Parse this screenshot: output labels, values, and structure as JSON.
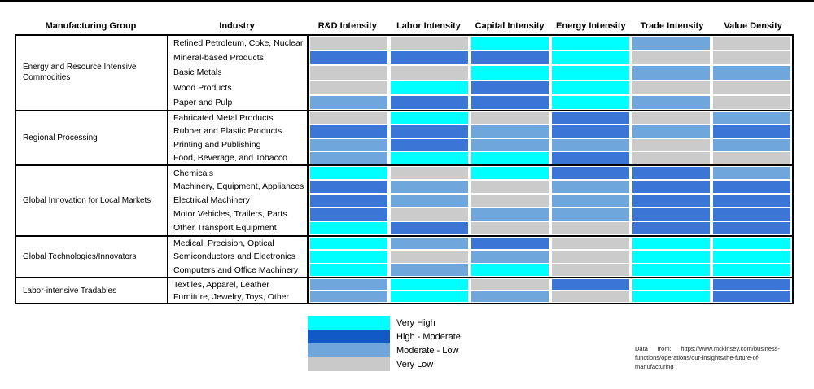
{
  "header": {
    "group_col": "Manufacturing Group",
    "industry_col": "Industry",
    "metric_cols": [
      "R&D Intensity",
      "Labor Intensity",
      "Capital Intensity",
      "Energy Intensity",
      "Trade Intensity",
      "Value Density"
    ]
  },
  "source_note": "Data from: https://www.mckinsey.com/business-functions/operations/our-insights/the-future-of-manufacturing",
  "chart_data": {
    "type": "heatmap",
    "columns": [
      "R&D Intensity",
      "Labor Intensity",
      "Capital Intensity",
      "Energy Intensity",
      "Trade Intensity",
      "Value Density"
    ],
    "level_order": [
      "VH",
      "HM",
      "ML",
      "VL"
    ],
    "levels": {
      "VH": {
        "label": "Very High",
        "legend_color": "#00ffff",
        "cell_color": "#00ffff"
      },
      "HM": {
        "label": "High - Moderate",
        "legend_color": "#1259c8",
        "cell_color": "#3b76d6"
      },
      "ML": {
        "label": "Moderate - Low",
        "legend_color": "#6fa6dc",
        "cell_color": "#6fa6dc"
      },
      "VL": {
        "label": "Very Low",
        "legend_color": "#c9c9c9",
        "cell_color": "#cbcbcb"
      }
    },
    "groups": [
      {
        "name": "Energy and Resource Intensive Commodities",
        "rows": [
          {
            "industry": "Refined Petroleum, Coke, Nuclear",
            "values": [
              "VL",
              "VL",
              "VH",
              "VH",
              "ML",
              "VL"
            ]
          },
          {
            "industry": "Mineral-based Products",
            "values": [
              "HM",
              "HM",
              "HM",
              "VH",
              "VL",
              "VL"
            ]
          },
          {
            "industry": "Basic Metals",
            "values": [
              "VL",
              "VL",
              "VH",
              "VH",
              "ML",
              "ML"
            ]
          },
          {
            "industry": "Wood Products",
            "values": [
              "VL",
              "VH",
              "HM",
              "VH",
              "VL",
              "VL"
            ]
          },
          {
            "industry": "Paper and Pulp",
            "values": [
              "ML",
              "HM",
              "HM",
              "VH",
              "ML",
              "VL"
            ]
          }
        ]
      },
      {
        "name": "Regional Processing",
        "rows": [
          {
            "industry": "Fabricated Metal Products",
            "values": [
              "VL",
              "VH",
              "VL",
              "HM",
              "VL",
              "ML"
            ]
          },
          {
            "industry": "Rubber and Plastic Products",
            "values": [
              "HM",
              "HM",
              "ML",
              "HM",
              "ML",
              "HM"
            ]
          },
          {
            "industry": "Printing and Publishing",
            "values": [
              "ML",
              "HM",
              "ML",
              "ML",
              "VL",
              "ML"
            ]
          },
          {
            "industry": "Food, Beverage, and Tobacco",
            "values": [
              "ML",
              "VH",
              "VH",
              "HM",
              "VL",
              "VL"
            ]
          }
        ]
      },
      {
        "name": "Global Innovation for Local Markets",
        "rows": [
          {
            "industry": "Chemicals",
            "values": [
              "VH",
              "VL",
              "VH",
              "HM",
              "HM",
              "ML"
            ]
          },
          {
            "industry": "Machinery, Equipment, Appliances",
            "values": [
              "HM",
              "ML",
              "VL",
              "ML",
              "HM",
              "HM"
            ]
          },
          {
            "industry": "Electrical Machinery",
            "values": [
              "HM",
              "ML",
              "VL",
              "ML",
              "HM",
              "HM"
            ]
          },
          {
            "industry": "Motor Vehicles, Trailers, Parts",
            "values": [
              "HM",
              "VL",
              "ML",
              "ML",
              "HM",
              "HM"
            ]
          },
          {
            "industry": "Other Transport Equipment",
            "values": [
              "VH",
              "HM",
              "VL",
              "VL",
              "HM",
              "HM"
            ]
          }
        ]
      },
      {
        "name": "Global Technologies/Innovators",
        "rows": [
          {
            "industry": "Medical, Precision, Optical",
            "values": [
              "VH",
              "ML",
              "HM",
              "VL",
              "VH",
              "VH"
            ]
          },
          {
            "industry": "Semiconductors and Electronics",
            "values": [
              "VH",
              "VL",
              "ML",
              "VL",
              "VH",
              "VH"
            ]
          },
          {
            "industry": "Computers and Office Machinery",
            "values": [
              "VH",
              "ML",
              "VH",
              "VL",
              "VH",
              "VH"
            ]
          }
        ]
      },
      {
        "name": "Labor-intensive Tradables",
        "rows": [
          {
            "industry": "Textiles, Apparel, Leather",
            "values": [
              "ML",
              "VH",
              "VL",
              "HM",
              "VH",
              "HM"
            ]
          },
          {
            "industry": "Furniture, Jewelry, Toys, Other",
            "values": [
              "ML",
              "VH",
              "ML",
              "VL",
              "VH",
              "HM"
            ]
          }
        ]
      }
    ]
  }
}
